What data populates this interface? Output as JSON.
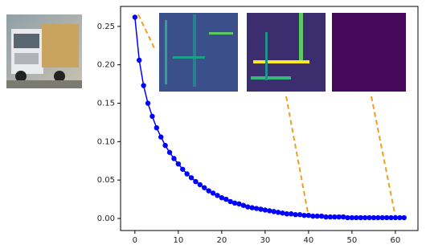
{
  "chart_data": {
    "type": "line",
    "x": [
      0,
      1,
      2,
      3,
      4,
      5,
      6,
      7,
      8,
      9,
      10,
      11,
      12,
      13,
      14,
      15,
      16,
      17,
      18,
      19,
      20,
      21,
      22,
      23,
      24,
      25,
      26,
      27,
      28,
      29,
      30,
      31,
      32,
      33,
      34,
      35,
      36,
      37,
      38,
      39,
      40,
      41,
      42,
      43,
      44,
      45,
      46,
      47,
      48,
      49,
      50,
      51,
      52,
      53,
      54,
      55,
      56,
      57,
      58,
      59,
      60,
      61,
      62
    ],
    "series": [
      {
        "color": "#0000ff",
        "values": [
          0.262,
          0.206,
          0.173,
          0.15,
          0.133,
          0.118,
          0.106,
          0.095,
          0.086,
          0.078,
          0.071,
          0.064,
          0.058,
          0.053,
          0.048,
          0.044,
          0.04,
          0.036,
          0.033,
          0.03,
          0.027,
          0.025,
          0.022,
          0.02,
          0.019,
          0.017,
          0.015,
          0.014,
          0.013,
          0.012,
          0.011,
          0.01,
          0.009,
          0.008,
          0.007,
          0.006,
          0.006,
          0.005,
          0.005,
          0.004,
          0.004,
          0.003,
          0.003,
          0.003,
          0.002,
          0.002,
          0.002,
          0.002,
          0.002,
          0.001,
          0.001,
          0.001,
          0.001,
          0.001,
          0.001,
          0.001,
          0.001,
          0.001,
          0.001,
          0.001,
          0.001,
          0.001,
          0.001
        ]
      }
    ],
    "xlim": [
      -3.3,
      65.2
    ],
    "ylim": [
      -0.0157,
      0.276
    ],
    "xticks": [
      0,
      10,
      20,
      30,
      40,
      50,
      60
    ],
    "yticks": [
      {
        "value": 0,
        "label": "0.00"
      },
      0.05,
      {
        "value": 0.1,
        "label": "0.10"
      },
      0.15,
      {
        "value": 0.2,
        "label": "0.20"
      },
      0.25
    ]
  }
}
